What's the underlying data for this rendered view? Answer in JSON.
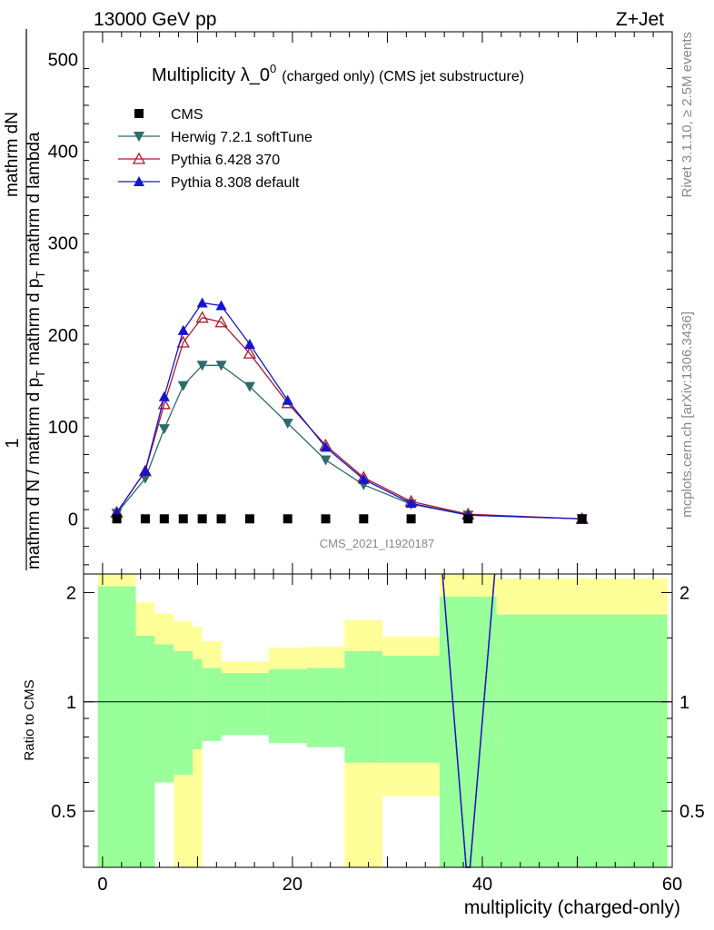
{
  "header": {
    "left": "13000 GeV pp",
    "right": "Z+Jet"
  },
  "side_text": {
    "rivet": "Rivet 3.1.10, ≥ 2.5M events",
    "mcplots": "mcplots.cern.ch [arXiv:1306.3436]"
  },
  "chart_data": [
    {
      "type": "scatter",
      "title_main": "Multiplicity λ_0",
      "title_sup": "0",
      "title_small": "(charged only) (CMS jet substructure)",
      "ylabel_top": "1",
      "ylabel_num": "mathrm dN",
      "ylabel_den_1": "mathrm d N / mathrm d p",
      "ylabel_den_1_sub": "T",
      "ylabel_den_2": " mathrm d p",
      "ylabel_den_2_sub": "T",
      "ylabel_den_3": " mathrm d lambda",
      "watermark": "CMS_2021_I1920187",
      "xlim": [
        -2,
        60
      ],
      "ylim": [
        -60,
        530
      ],
      "y_ticks": [
        0,
        100,
        200,
        300,
        400,
        500
      ],
      "x_bins": [
        1.5,
        4.5,
        6.5,
        8.5,
        10.5,
        12.5,
        15.5,
        19.5,
        23.5,
        27.5,
        32.5,
        38.5,
        50.5
      ],
      "series": [
        {
          "name": "CMS",
          "color": "#000000",
          "marker": "square",
          "values": [
            0,
            0,
            0,
            0,
            0,
            0,
            0,
            0,
            0,
            0,
            0,
            0,
            0
          ]
        },
        {
          "name": "Herwig 7.2.1 softTune",
          "color": "#2e6b6b",
          "marker": "triangle-down",
          "values": [
            6,
            44,
            98,
            145,
            167,
            167,
            144,
            104,
            64,
            37,
            16,
            4,
            0
          ]
        },
        {
          "name": "Pythia 6.428 370",
          "color": "#aa1a2a",
          "marker": "triangle-up-open",
          "values": [
            7,
            52,
            125,
            192,
            219,
            214,
            180,
            126,
            80,
            45,
            19,
            5,
            0
          ]
        },
        {
          "name": "Pythia 8.308 default",
          "color": "#1414d4",
          "marker": "triangle-up",
          "values": [
            7,
            52,
            133,
            205,
            235,
            232,
            190,
            129,
            78,
            43,
            17,
            4,
            0
          ]
        }
      ]
    },
    {
      "type": "area",
      "ylabel": "Ratio to CMS",
      "xlabel": "multiplicity (charged-only)",
      "xlim": [
        -2,
        60
      ],
      "ylim": [
        0.35,
        2.25
      ],
      "y_ticks": [
        0.5,
        1,
        2
      ],
      "x_ticks": [
        0,
        20,
        40,
        60
      ],
      "reference": 1,
      "bands": [
        {
          "x": [
            -0.5,
            3.5
          ],
          "green": [
            0.35,
            2.08
          ],
          "yellow": [
            0.35,
            2.25
          ]
        },
        {
          "x": [
            3.5,
            5.5
          ],
          "green": [
            0.35,
            1.52
          ],
          "yellow": [
            0.6,
            1.88
          ]
        },
        {
          "x": [
            5.5,
            7.5
          ],
          "green": [
            0.6,
            1.44
          ],
          "yellow": [
            0.68,
            1.75
          ]
        },
        {
          "x": [
            7.5,
            9.5
          ],
          "green": [
            0.63,
            1.38
          ],
          "yellow": [
            0.35,
            1.67
          ]
        },
        {
          "x": [
            9.5,
            10.5
          ],
          "green": [
            0.74,
            1.31
          ],
          "yellow": [
            0.35,
            1.61
          ]
        },
        {
          "x": [
            10.5,
            12.5
          ],
          "green": [
            0.78,
            1.24
          ],
          "yellow": [
            0.84,
            1.47
          ]
        },
        {
          "x": [
            12.5,
            17.5
          ],
          "green": [
            0.81,
            1.2
          ],
          "yellow": [
            0.88,
            1.29
          ]
        },
        {
          "x": [
            17.5,
            21.5
          ],
          "green": [
            0.77,
            1.23
          ],
          "yellow": [
            0.84,
            1.41
          ]
        },
        {
          "x": [
            21.5,
            25.5
          ],
          "green": [
            0.75,
            1.24
          ],
          "yellow": [
            0.83,
            1.42
          ]
        },
        {
          "x": [
            25.5,
            29.5
          ],
          "green": [
            0.68,
            1.38
          ],
          "yellow": [
            0.35,
            1.68
          ]
        },
        {
          "x": [
            29.5,
            35.5
          ],
          "green": [
            0.68,
            1.34
          ],
          "yellow": [
            0.55,
            1.51
          ]
        },
        {
          "x": [
            35.5,
            41.5
          ],
          "green": [
            0.35,
            1.95
          ],
          "yellow": [
            0.35,
            2.25
          ]
        },
        {
          "x": [
            41.5,
            59.5
          ],
          "green": [
            0.35,
            1.74
          ],
          "yellow": [
            0.35,
            2.19
          ]
        }
      ],
      "ratio_lines": [
        {
          "name": "Pythia 6.428 370",
          "color": "#aa1a2a",
          "x": [
            35.8,
            38.3,
            38.7,
            41.3
          ],
          "y": [
            2.25,
            0.35,
            0.35,
            2.25
          ]
        },
        {
          "name": "Pythia 8.308 default",
          "color": "#1414d4",
          "x": [
            35.8,
            38.3,
            38.7,
            41.3
          ],
          "y": [
            2.25,
            0.35,
            0.35,
            2.25
          ]
        }
      ]
    }
  ]
}
